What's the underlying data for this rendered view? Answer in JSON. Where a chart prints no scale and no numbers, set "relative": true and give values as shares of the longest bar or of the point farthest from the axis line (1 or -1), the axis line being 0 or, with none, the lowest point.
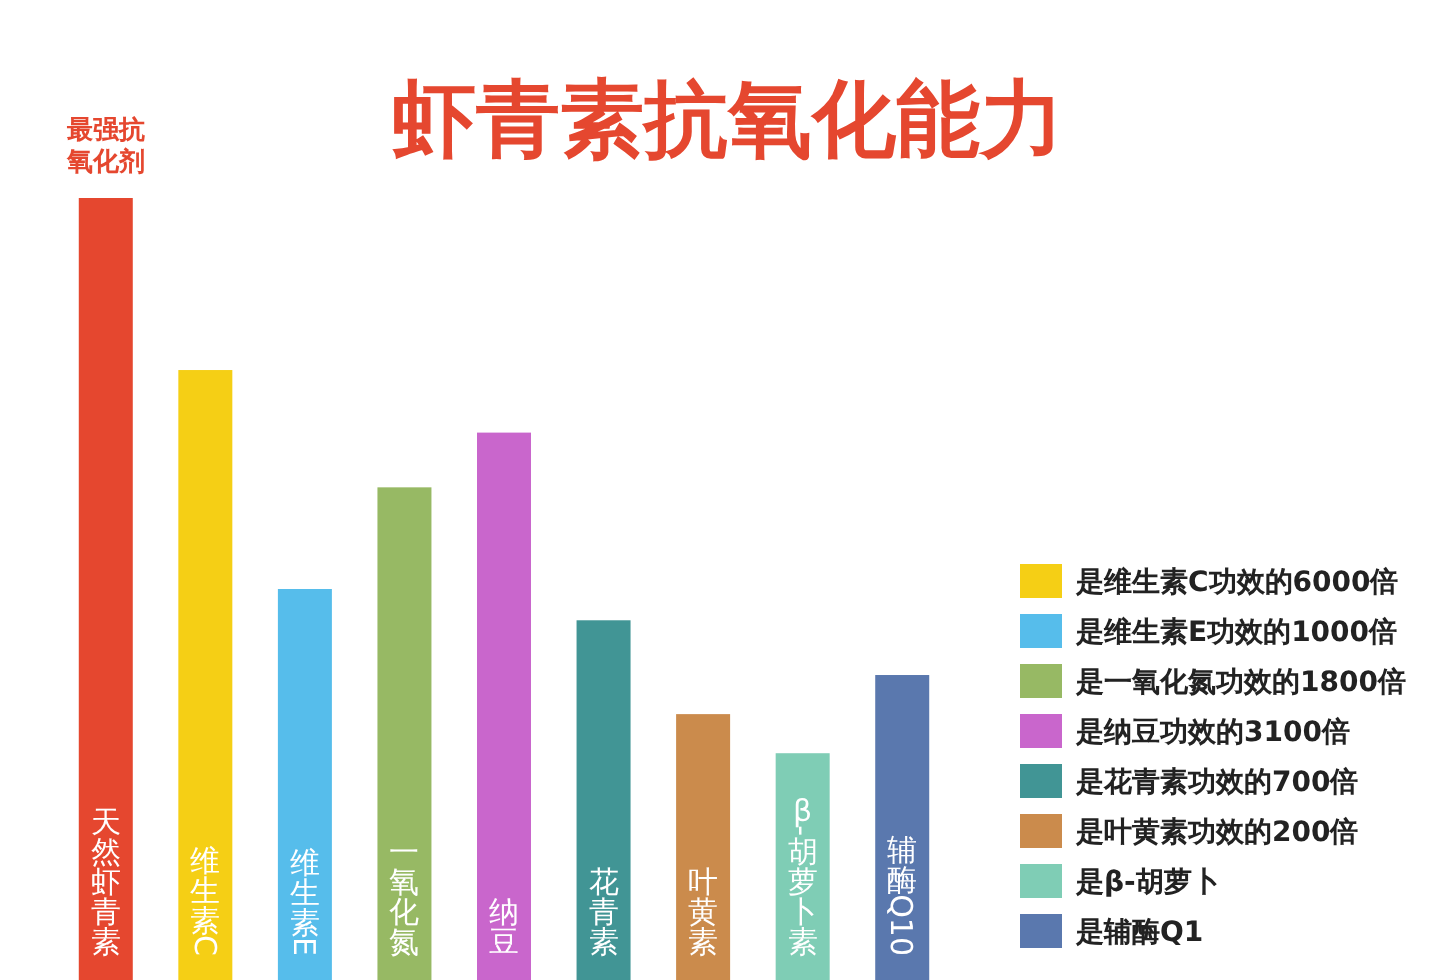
{
  "chart_data": {
    "type": "bar",
    "title": "虾青素抗氧化能力",
    "annotations": [
      {
        "text": "最强抗氧化剂",
        "x": "天然虾青素",
        "y": 1
      }
    ],
    "categories": [
      "天然虾青素",
      "维生素C",
      "维生素E",
      "一氧化氮",
      "纳豆",
      "花青素",
      "叶黄素",
      "β-胡萝卜素",
      "辅酶Q10"
    ],
    "relative": true,
    "stacked": true,
    "legend": "bottom right",
    "series": [
      {
        "color": "#e5472f",
        "values": [
          1,
          null,
          null,
          null,
          null,
          null,
          null,
          null,
          null
        ]
      },
      {
        "name": "是维生素C功效的6000倍",
        "color": "#f5cf15",
        "values": [
          null,
          0.78,
          null,
          null,
          null,
          null,
          null,
          null,
          null
        ]
      },
      {
        "name": "是维生素E功效的1000倍",
        "color": "#56bdeb",
        "values": [
          null,
          null,
          0.5,
          null,
          null,
          null,
          null,
          null,
          null
        ]
      },
      {
        "name": "是一氧化氮功效的1800倍",
        "color": "#97b964",
        "values": [
          null,
          null,
          null,
          0.63,
          null,
          null,
          null,
          null,
          null
        ]
      },
      {
        "name": "是纳豆功效的3100倍",
        "color": "#c966cc",
        "values": [
          null,
          null,
          null,
          null,
          0.7,
          null,
          null,
          null,
          null
        ]
      },
      {
        "name": "是花青素功效的700倍",
        "color": "#419595",
        "values": [
          null,
          null,
          null,
          null,
          null,
          0.46,
          null,
          null,
          null
        ]
      },
      {
        "name": "是叶黄素功效的200倍",
        "color": "#cb8b4c",
        "values": [
          null,
          null,
          null,
          null,
          null,
          null,
          0.34,
          null,
          null
        ]
      },
      {
        "name": "是β-胡萝卜",
        "color": "#7fcdb5",
        "values": [
          null,
          null,
          null,
          null,
          null,
          null,
          null,
          0.29,
          null
        ]
      },
      {
        "name": "是辅酶Q1",
        "color": "#5a78ae",
        "values": [
          null,
          null,
          null,
          null,
          null,
          null,
          null,
          null,
          0.39
        ]
      }
    ]
  }
}
